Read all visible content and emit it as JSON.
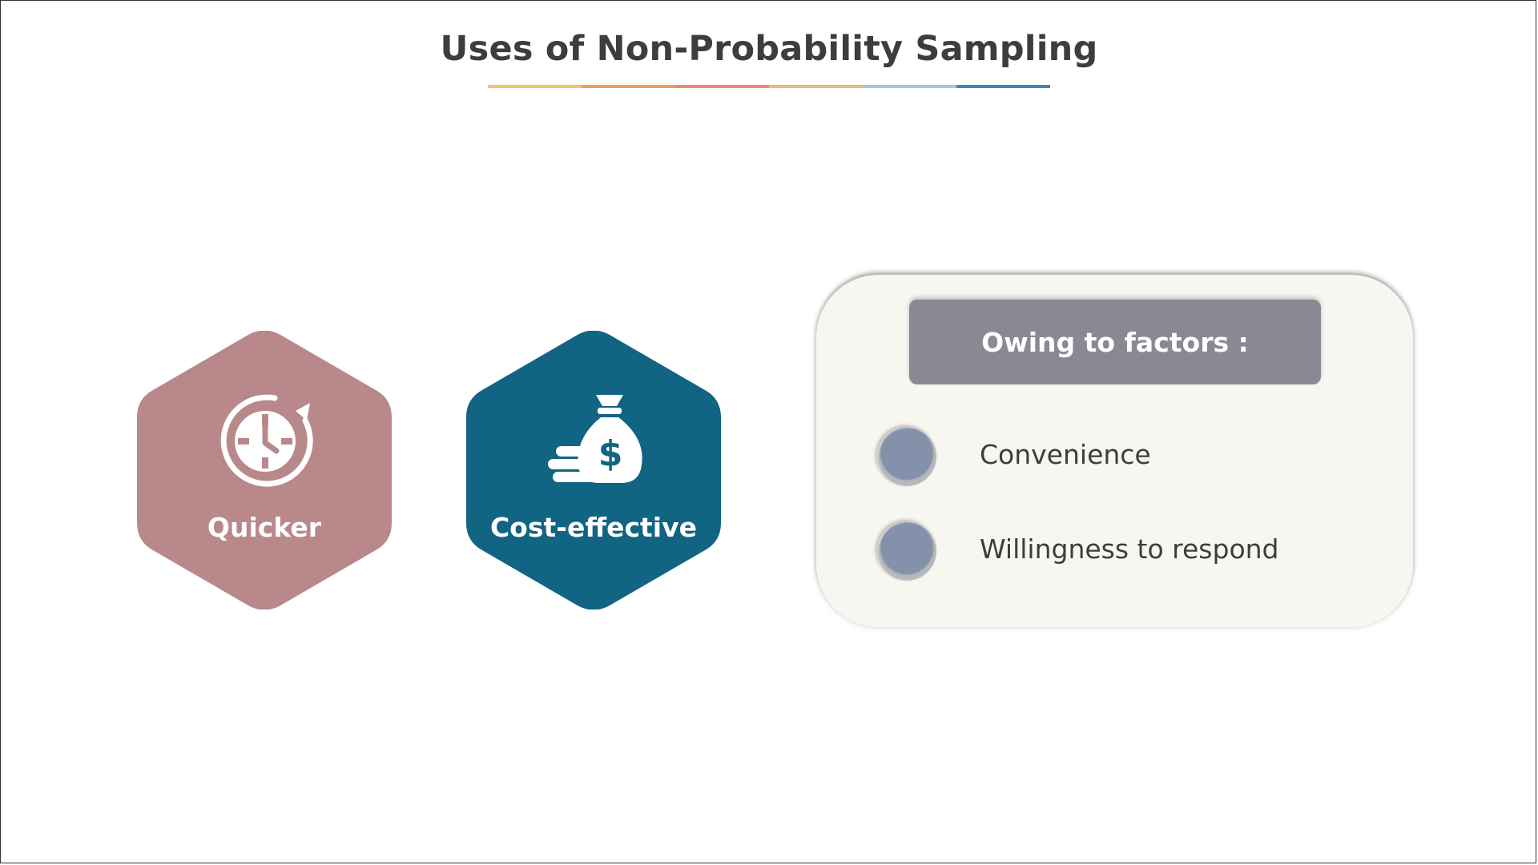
{
  "title": "Uses of Non-Probability Sampling",
  "underline_colors": [
    "#f7c46c",
    "#f0a05a",
    "#ee8a6a",
    "#f0b87a",
    "#9ccbe6",
    "#3b86bd"
  ],
  "benefits": [
    {
      "label": "Quicker",
      "icon": "clock-refresh-icon",
      "color": "#b8888b"
    },
    {
      "label": "Cost-effective",
      "icon": "money-bag-icon",
      "color": "#116482"
    }
  ],
  "factors": {
    "header": "Owing to factors :",
    "items": [
      "Convenience",
      "Willingness to respond"
    ]
  }
}
